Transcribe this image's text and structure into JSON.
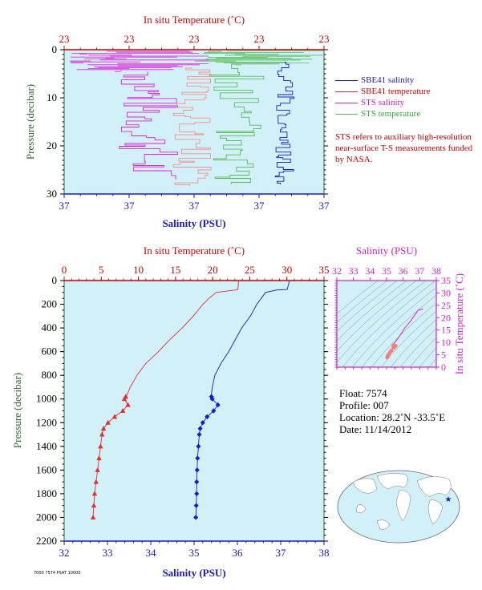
{
  "colors": {
    "panel_bg": "#d2f0f7",
    "temp": "#e03030",
    "salt": "#1a1acc",
    "sts_salt": "#dd22dd",
    "sts_temp": "#55bb55",
    "magenta_axis": "#cc22cc",
    "axis_red": "#cc0000",
    "axis_blue": "#1a1acc",
    "axis_green": "#336633"
  },
  "top_chart": {
    "top_axis_label": "In situ Temperature (˚C)",
    "top_ticks": [
      "23",
      "23",
      "23",
      "23",
      "23"
    ],
    "bottom_axis_label": "Salinity (PSU)",
    "bottom_ticks": [
      "37",
      "37",
      "37",
      "37",
      "37"
    ],
    "left_axis_label": "Pressure (decibar)",
    "y_ticks": [
      "0",
      "10",
      "20",
      "30"
    ],
    "legend": [
      {
        "label": "SBE41 salinity",
        "color": "#1a1acc",
        "text_color": "#1a1acc"
      },
      {
        "label": "SBE41 temperature",
        "color": "#e03030",
        "text_color": "#cc0000"
      },
      {
        "label": "STS salinity",
        "color": "#dd22dd",
        "text_color": "#cc22cc"
      },
      {
        "label": "STS temperature",
        "color": "#55bb55",
        "text_color": "#33aa33"
      }
    ],
    "note": "STS refers to auxiliary high-resolution near-surface T-S measurements funded by NASA."
  },
  "chart_data": [
    {
      "type": "line",
      "x_top_label": "In situ Temperature (˚C)",
      "x_top_ticks": [
        0,
        5,
        10,
        15,
        20,
        25,
        30,
        35
      ],
      "x_top_range": [
        0,
        35
      ],
      "x_bottom_label": "Salinity (PSU)",
      "x_bottom_ticks": [
        32,
        33,
        34,
        35,
        36,
        37,
        38
      ],
      "x_bottom_range": [
        32,
        38
      ],
      "ylabel": "Pressure (decibar)",
      "y_ticks": [
        0,
        200,
        400,
        600,
        800,
        1000,
        1200,
        1400,
        1600,
        1800,
        2000,
        2200
      ],
      "ylim": [
        0,
        2200
      ],
      "y_inverted": true,
      "series": [
        {
          "name": "temperature",
          "color": "#e03030",
          "p": [
            5,
            75,
            80,
            100,
            150,
            200,
            300,
            400,
            500,
            600,
            700,
            800,
            900,
            960,
            980,
            1000,
            1050,
            1100,
            1150,
            1200,
            1250,
            1300,
            1400,
            1500,
            1600,
            1700,
            1800,
            1900,
            2000
          ],
          "t": [
            23.5,
            23.4,
            23.0,
            20.5,
            19.5,
            18.7,
            17.4,
            15.9,
            14.2,
            12.7,
            11.0,
            9.8,
            8.9,
            8.5,
            8.3,
            8.1,
            8.6,
            7.9,
            6.8,
            5.9,
            5.3,
            5.1,
            4.9,
            4.7,
            4.5,
            4.3,
            4.1,
            4.0,
            3.9
          ],
          "marker_from_pressure": 980
        },
        {
          "name": "salinity",
          "color": "#1a1acc",
          "p": [
            5,
            75,
            80,
            100,
            150,
            200,
            300,
            400,
            500,
            600,
            700,
            800,
            900,
            960,
            980,
            1000,
            1050,
            1100,
            1150,
            1200,
            1250,
            1300,
            1400,
            1500,
            1600,
            1700,
            1800,
            1900,
            2000
          ],
          "s": [
            37.2,
            37.15,
            36.9,
            36.65,
            36.55,
            36.45,
            36.3,
            36.1,
            35.95,
            35.8,
            35.62,
            35.48,
            35.42,
            35.4,
            35.4,
            35.42,
            35.55,
            35.45,
            35.3,
            35.2,
            35.14,
            35.12,
            35.1,
            35.08,
            35.07,
            35.06,
            35.06,
            35.05,
            35.04
          ],
          "marker_from_pressure": 980
        }
      ]
    },
    {
      "type": "scatter",
      "x_top_label": "Salinity (PSU)",
      "x_ticks": [
        32,
        33,
        34,
        35,
        36,
        37,
        38
      ],
      "x_range": [
        32,
        38
      ],
      "ylabel": "In situ Temperature (˚C)",
      "y_ticks": [
        0,
        5,
        10,
        15,
        20,
        25,
        30,
        35
      ],
      "ylim": [
        0,
        35
      ],
      "series": [
        {
          "name": "profile",
          "s": [
            37.2,
            36.9,
            36.65,
            36.45,
            36.3,
            36.1,
            35.95,
            35.8,
            35.62,
            35.48,
            35.42,
            35.4,
            35.55,
            35.45,
            35.3,
            35.2,
            35.12,
            35.08,
            35.06,
            35.04
          ],
          "t": [
            23.5,
            23.0,
            20.5,
            18.7,
            17.4,
            15.9,
            14.2,
            12.7,
            11.0,
            9.8,
            8.9,
            8.3,
            8.6,
            7.9,
            6.8,
            5.9,
            5.1,
            4.7,
            4.3,
            3.9
          ]
        }
      ]
    }
  ],
  "float_info": {
    "float": "Float:  7574",
    "profile": "Profile:  007",
    "location": "Location:  28.2˚N  -33.5˚E",
    "date": "Date:  11/14/2012"
  },
  "footer_code": "7000 7574 PSAT 10000"
}
